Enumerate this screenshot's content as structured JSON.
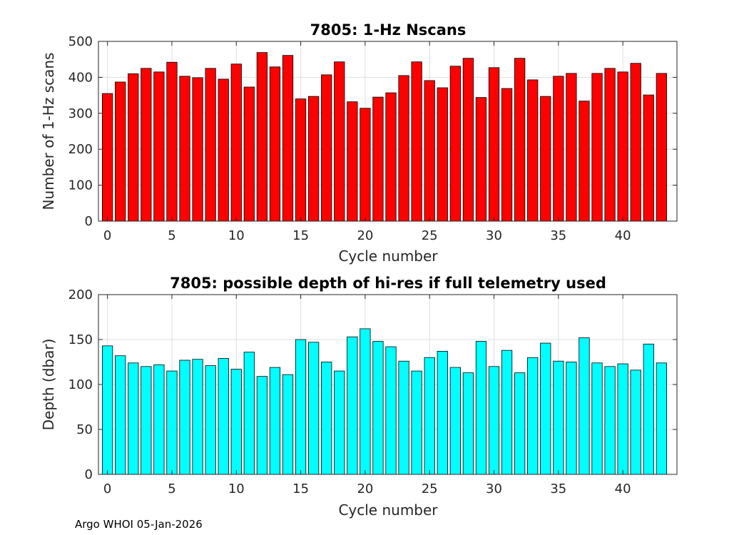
{
  "footer": "Argo WHOI 05-Jan-2026",
  "chart_data": [
    {
      "type": "bar",
      "title": "7805: 1-Hz Nscans",
      "xlabel": "Cycle number",
      "ylabel": "Number of 1-Hz scans",
      "color": "#ff0000",
      "grid": true,
      "xlim": [
        -0.7,
        44.2
      ],
      "ylim": [
        0,
        500
      ],
      "xticks": [
        0,
        5,
        10,
        15,
        20,
        25,
        30,
        35,
        40
      ],
      "yticks": [
        0,
        100,
        200,
        300,
        400,
        500
      ],
      "x": [
        0,
        1,
        2,
        3,
        4,
        5,
        6,
        7,
        8,
        9,
        10,
        11,
        12,
        13,
        14,
        15,
        16,
        17,
        18,
        19,
        20,
        21,
        22,
        23,
        24,
        25,
        26,
        27,
        28,
        29,
        30,
        31,
        32,
        33,
        34,
        35,
        36,
        37,
        38,
        39,
        40,
        41,
        42,
        43
      ],
      "values": [
        355,
        387,
        410,
        425,
        415,
        442,
        403,
        399,
        425,
        395,
        437,
        373,
        469,
        429,
        461,
        340,
        347,
        407,
        443,
        332,
        314,
        345,
        357,
        405,
        443,
        391,
        371,
        431,
        453,
        344,
        427,
        369,
        453,
        393,
        347,
        403,
        411,
        334,
        411,
        425,
        415,
        439,
        351,
        411
      ]
    },
    {
      "type": "bar",
      "title": "7805: possible depth of hi-res if full telemetry used",
      "xlabel": "Cycle number",
      "ylabel": "Depth (dbar)",
      "color": "#00ffff",
      "grid": true,
      "xlim": [
        -0.7,
        44.2
      ],
      "ylim": [
        0,
        200
      ],
      "xticks": [
        0,
        5,
        10,
        15,
        20,
        25,
        30,
        35,
        40
      ],
      "yticks": [
        0,
        50,
        100,
        150,
        200
      ],
      "x": [
        0,
        1,
        2,
        3,
        4,
        5,
        6,
        7,
        8,
        9,
        10,
        11,
        12,
        13,
        14,
        15,
        16,
        17,
        18,
        19,
        20,
        21,
        22,
        23,
        24,
        25,
        26,
        27,
        28,
        29,
        30,
        31,
        32,
        33,
        34,
        35,
        36,
        37,
        38,
        39,
        40,
        41,
        42,
        43
      ],
      "values": [
        143,
        132,
        124,
        120,
        122,
        115,
        127,
        128,
        121,
        129,
        117,
        136,
        109,
        119,
        111,
        150,
        147,
        125,
        115,
        153,
        162,
        148,
        142,
        126,
        115,
        130,
        137,
        119,
        113,
        148,
        120,
        138,
        113,
        130,
        146,
        126,
        125,
        152,
        124,
        120,
        123,
        116,
        145,
        124
      ]
    }
  ]
}
